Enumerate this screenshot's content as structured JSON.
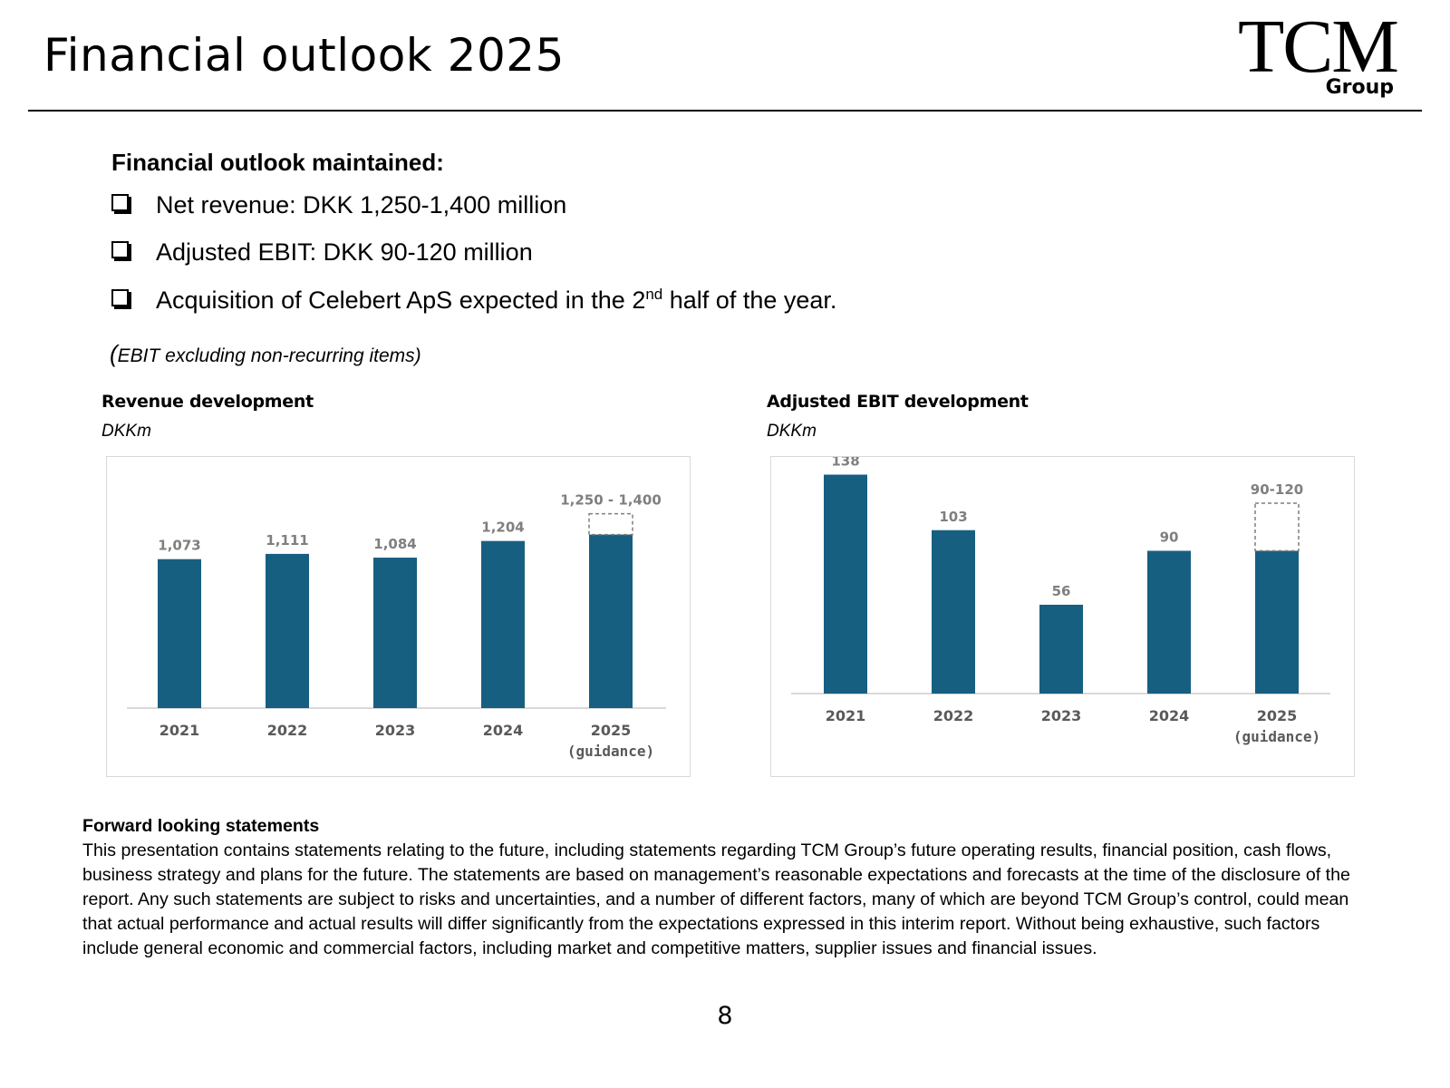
{
  "page": {
    "title": "Financial outlook 2025",
    "page_number": "8"
  },
  "logo": {
    "main": "TCM",
    "sub": "Group"
  },
  "outlook": {
    "heading": "Financial outlook maintained:",
    "bullets": [
      {
        "text": "Net revenue: DKK 1,250-1,400 million"
      },
      {
        "text": "Adjusted EBIT: DKK 90-120 million"
      },
      {
        "text_before": "Acquisition of Celebert ApS expected in the 2",
        "superscript": "nd",
        "text_after": " half of the year."
      }
    ],
    "note_paren": "(",
    "note": "EBIT excluding non-recurring items)"
  },
  "colors": {
    "bar": "#175f81",
    "label": "#7f7f7f",
    "axis_text": "#595959",
    "axis_line": "#d9d9d9"
  },
  "chart_data": [
    {
      "type": "bar",
      "title": "Revenue development",
      "unit": "DKKm",
      "categories": [
        "2021",
        "2022",
        "2023",
        "2024",
        "2025"
      ],
      "category_sublabels": [
        "",
        "",
        "",
        "",
        "(guidance)"
      ],
      "values": [
        1073,
        1111,
        1084,
        1204,
        1250
      ],
      "range_top": [
        null,
        null,
        null,
        null,
        1400
      ],
      "data_labels": [
        "1,073",
        "1,111",
        "1,084",
        "1,204",
        "1,250 - 1,400"
      ],
      "ylim": [
        0,
        1450
      ],
      "xlabel": "",
      "ylabel": "",
      "grid": false
    },
    {
      "type": "bar",
      "title": "Adjusted EBIT development",
      "unit": "DKKm",
      "categories": [
        "2021",
        "2022",
        "2023",
        "2024",
        "2025"
      ],
      "category_sublabels": [
        "",
        "",
        "",
        "",
        "(guidance)"
      ],
      "values": [
        138,
        103,
        56,
        90,
        90
      ],
      "range_top": [
        null,
        null,
        null,
        null,
        120
      ],
      "data_labels": [
        "138",
        "103",
        "56",
        "90",
        "90-120"
      ],
      "ylim": [
        0,
        140
      ],
      "xlabel": "",
      "ylabel": "",
      "grid": false
    }
  ],
  "forward_looking": {
    "heading": "Forward looking statements",
    "body": "This presentation contains statements relating to the future, including statements regarding TCM Group’s future operating results, financial position, cash flows, business strategy and plans for the future. The statements are based on management’s reasonable expectations and forecasts at the time of the disclosure of the report. Any such statements are subject to risks and uncertainties, and a number of different factors, many of which are beyond TCM Group’s control, could mean that actual performance and actual results will differ significantly from the expectations expressed in this interim report. Without being exhaustive, such factors include general economic and commercial factors, including market and competitive matters, supplier issues and financial issues."
  }
}
